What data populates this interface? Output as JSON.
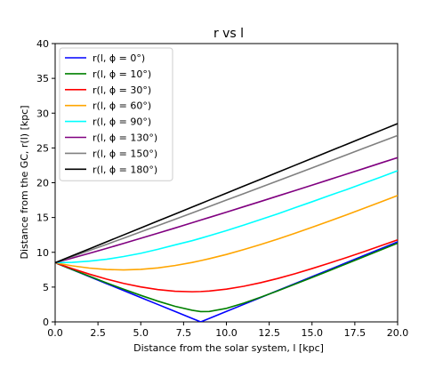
{
  "chart_data": {
    "type": "line",
    "title": "r vs l",
    "xlabel": "Distance from the solar system, l [kpc]",
    "ylabel": "Distance from the GC, r(l) [kpc]",
    "xlim": [
      0,
      20
    ],
    "ylim": [
      0,
      40
    ],
    "x_ticks": [
      "0.0",
      "2.5",
      "5.0",
      "7.5",
      "10.0",
      "12.5",
      "15.0",
      "17.5",
      "20.0"
    ],
    "y_ticks": [
      "0",
      "5",
      "10",
      "15",
      "20",
      "25",
      "30",
      "35",
      "40"
    ],
    "grid": false,
    "legend_position": "top-left",
    "x": [
      0,
      1,
      2,
      3,
      4,
      5,
      6,
      7,
      8,
      8.5,
      9,
      10,
      11,
      12,
      13,
      14,
      15,
      16,
      17,
      18,
      19,
      20
    ],
    "series": [
      {
        "name": "r(l, ϕ = 0°)",
        "color": "#0000ff",
        "values": [
          8.5,
          7.5,
          6.5,
          5.5,
          4.5,
          3.5,
          2.5,
          1.5,
          0.5,
          0.0,
          0.5,
          1.5,
          2.5,
          3.5,
          4.5,
          5.5,
          6.5,
          7.5,
          8.5,
          9.5,
          10.5,
          11.5
        ]
      },
      {
        "name": "r(l, ϕ = 10°)",
        "color": "#008000",
        "values": [
          8.5,
          7.52,
          6.56,
          5.61,
          4.69,
          3.81,
          2.98,
          2.24,
          1.67,
          1.48,
          1.49,
          1.94,
          2.68,
          3.55,
          4.46,
          5.41,
          6.37,
          7.35,
          8.34,
          9.33,
          10.32,
          11.31
        ]
      },
      {
        "name": "r(l, ϕ = 30°)",
        "color": "#ff0000",
        "values": [
          8.5,
          7.65,
          6.86,
          6.15,
          5.53,
          5.02,
          4.64,
          4.4,
          4.33,
          4.36,
          4.43,
          4.7,
          5.11,
          5.63,
          6.24,
          6.92,
          7.66,
          8.43,
          9.24,
          10.07,
          10.92,
          11.79
        ]
      },
      {
        "name": "r(l, ϕ = 60°)",
        "color": "#ffa500",
        "values": [
          8.5,
          8.05,
          7.73,
          7.53,
          7.47,
          7.55,
          7.76,
          8.1,
          8.54,
          8.8,
          9.08,
          9.69,
          10.38,
          11.12,
          11.9,
          12.73,
          13.59,
          14.47,
          15.37,
          16.29,
          17.22,
          18.16
        ]
      },
      {
        "name": "r(l, ϕ = 90°)",
        "color": "#00ffff",
        "values": [
          8.5,
          8.56,
          8.73,
          9.0,
          9.39,
          9.86,
          10.43,
          11.06,
          11.67,
          12.02,
          12.38,
          13.12,
          13.9,
          14.71,
          15.53,
          16.4,
          17.26,
          18.15,
          19.0,
          19.91,
          20.8,
          21.72
        ]
      },
      {
        "name": "r(l, ϕ = 130°)",
        "color": "#800080",
        "values": [
          8.5,
          9.17,
          9.86,
          10.56,
          11.28,
          12.01,
          12.75,
          13.49,
          14.25,
          14.63,
          15.01,
          15.77,
          16.54,
          17.31,
          18.09,
          18.87,
          19.65,
          20.44,
          21.23,
          22.02,
          22.82,
          23.61
        ]
      },
      {
        "name": "r(l, ϕ = 150°)",
        "color": "#808080",
        "values": [
          8.5,
          9.37,
          10.25,
          11.14,
          12.03,
          12.94,
          13.84,
          14.75,
          15.66,
          16.12,
          16.58,
          17.5,
          18.42,
          19.35,
          20.27,
          21.2,
          22.13,
          23.06,
          23.99,
          24.93,
          25.86,
          26.79
        ]
      },
      {
        "name": "r(l, ϕ = 180°)",
        "color": "#000000",
        "values": [
          8.5,
          9.5,
          10.5,
          11.5,
          12.5,
          13.5,
          14.5,
          15.5,
          16.5,
          17.0,
          17.5,
          18.5,
          19.5,
          20.5,
          21.5,
          22.5,
          23.5,
          24.5,
          25.5,
          26.5,
          27.5,
          28.5
        ]
      }
    ]
  }
}
